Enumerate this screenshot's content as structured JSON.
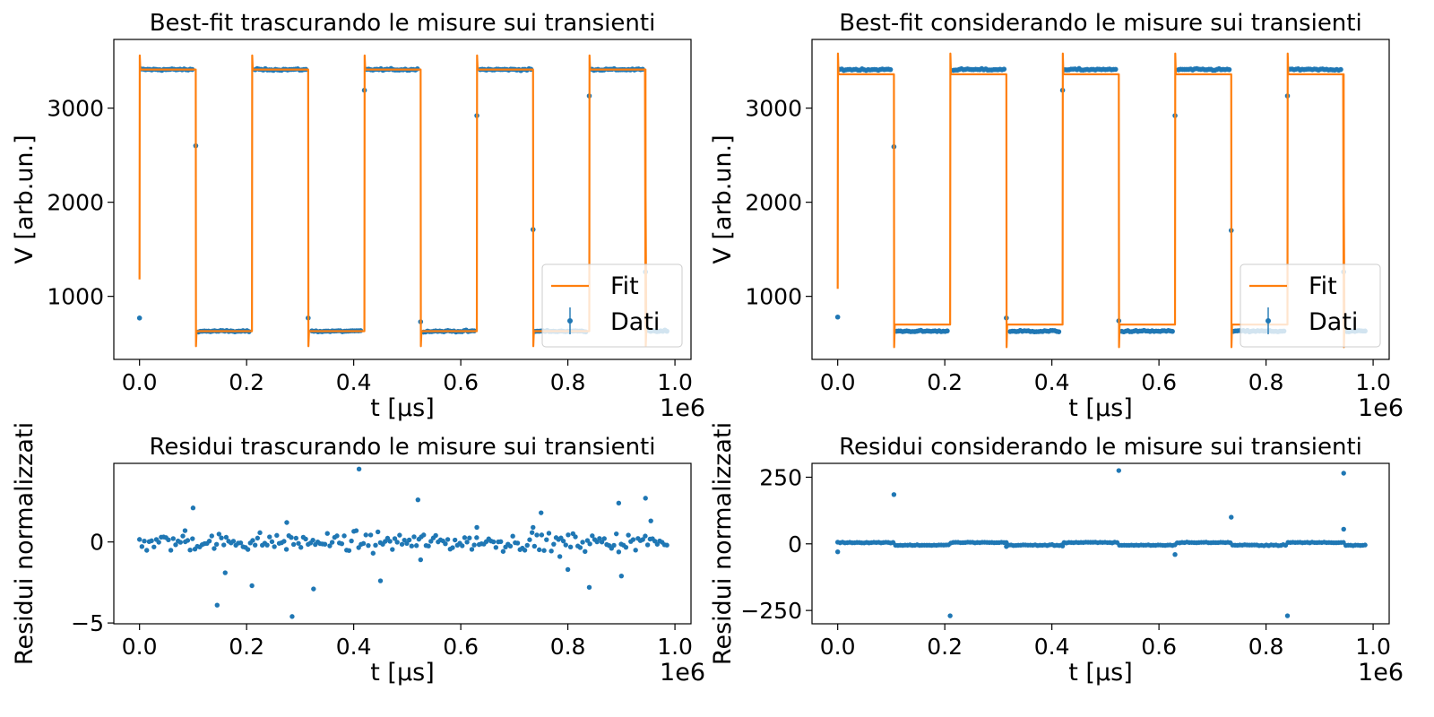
{
  "colors": {
    "data": "#1f77b4",
    "fit": "#ff7f0e",
    "axes": "#000000",
    "legend_edge": "#cccccc"
  },
  "panels": [
    {
      "title": "Best-fit trascurando le misure sui transienti",
      "xlabel": "t [μs]",
      "ylabel": "V [arb.un.]",
      "offset_text": "1e6",
      "xticks": [
        "0.0",
        "0.2",
        "0.4",
        "0.6",
        "0.8",
        "1.0"
      ],
      "yticks": [
        "1000",
        "2000",
        "3000"
      ],
      "legend": {
        "fit": "Fit",
        "data": "Dati"
      }
    },
    {
      "title": "Best-fit considerando le misure sui transienti",
      "xlabel": "t [μs]",
      "ylabel": "V [arb.un.]",
      "offset_text": "1e6",
      "xticks": [
        "0.0",
        "0.2",
        "0.4",
        "0.6",
        "0.8",
        "1.0"
      ],
      "yticks": [
        "1000",
        "2000",
        "3000"
      ],
      "legend": {
        "fit": "Fit",
        "data": "Dati"
      }
    },
    {
      "title": "Residui trascurando le misure sui transienti",
      "xlabel": "t [μs]",
      "ylabel": "Residui normalizzati",
      "offset_text": "1e6",
      "xticks": [
        "0.0",
        "0.2",
        "0.4",
        "0.6",
        "0.8",
        "1.0"
      ],
      "yticks": [
        "−5",
        "0"
      ]
    },
    {
      "title": "Residui considerando le misure sui transienti",
      "xlabel": "t [μs]",
      "ylabel": "Residui normalizzati",
      "offset_text": "1e6",
      "xticks": [
        "0.0",
        "0.2",
        "0.4",
        "0.6",
        "0.8",
        "1.0"
      ],
      "yticks": [
        "−250",
        "0",
        "250"
      ]
    }
  ],
  "chart_data": [
    {
      "type": "line",
      "title": "Best-fit trascurando le misure sui transienti",
      "xlabel": "t [μs]",
      "ylabel": "V [arb.un.]",
      "x_scale_factor": "1e6",
      "xlim": [
        -0.048,
        1.03
      ],
      "ylim": [
        330,
        3730
      ],
      "legend_position": "lower right",
      "series": [
        {
          "name": "Dati",
          "style": "points with error bars",
          "high_level": 3410,
          "low_level": 630,
          "transitions": [
            0.0,
            0.105,
            0.21,
            0.315,
            0.42,
            0.525,
            0.63,
            0.735,
            0.84,
            0.945
          ],
          "x_end": 0.985,
          "outliers": [
            [
              0.0,
              770
            ],
            [
              0.105,
              2600
            ],
            [
              0.315,
              770
            ],
            [
              0.42,
              3190
            ],
            [
              0.525,
              730
            ],
            [
              0.63,
              2920
            ],
            [
              0.735,
              1710
            ],
            [
              0.84,
              3130
            ],
            [
              0.945,
              1260
            ]
          ]
        },
        {
          "name": "Fit",
          "style": "line",
          "high_level": 3410,
          "low_level": 630,
          "start_value": 1180,
          "overshoot_high": 3560,
          "overshoot_low": 470,
          "transitions": [
            0.0,
            0.105,
            0.21,
            0.315,
            0.42,
            0.525,
            0.63,
            0.735,
            0.84,
            0.945
          ]
        }
      ]
    },
    {
      "type": "line",
      "title": "Best-fit considerando le misure sui transienti",
      "xlabel": "t [μs]",
      "ylabel": "V [arb.un.]",
      "x_scale_factor": "1e6",
      "xlim": [
        -0.048,
        1.03
      ],
      "ylim": [
        330,
        3730
      ],
      "legend_position": "lower right",
      "series": [
        {
          "name": "Dati",
          "style": "points with error bars",
          "high_level": 3410,
          "low_level": 630,
          "transitions": [
            0.0,
            0.105,
            0.21,
            0.315,
            0.42,
            0.525,
            0.63,
            0.735,
            0.84,
            0.945
          ],
          "x_end": 0.985,
          "outliers": [
            [
              0.0,
              780
            ],
            [
              0.105,
              2590
            ],
            [
              0.315,
              770
            ],
            [
              0.42,
              3190
            ],
            [
              0.525,
              740
            ],
            [
              0.63,
              2920
            ],
            [
              0.735,
              1700
            ],
            [
              0.84,
              3130
            ],
            [
              0.945,
              1260
            ]
          ]
        },
        {
          "name": "Fit",
          "style": "line",
          "high_level": 3360,
          "low_level": 700,
          "start_value": 1080,
          "overshoot_high": 3580,
          "overshoot_low": 460,
          "transitions": [
            0.0,
            0.105,
            0.21,
            0.315,
            0.42,
            0.525,
            0.63,
            0.735,
            0.84,
            0.945
          ]
        }
      ]
    },
    {
      "type": "scatter",
      "title": "Residui trascurando le misure sui transienti",
      "xlabel": "t [μs]",
      "ylabel": "Residui normalizzati",
      "x_scale_factor": "1e6",
      "xlim": [
        -0.048,
        1.03
      ],
      "ylim": [
        -5.05,
        4.85
      ],
      "series": [
        {
          "name": "Residui",
          "noise_sigma": 0.35,
          "n_points": 220,
          "x_range": [
            0.0,
            0.985
          ],
          "outliers": [
            [
              0.085,
              0.7
            ],
            [
              0.1,
              2.1
            ],
            [
              0.145,
              -3.9
            ],
            [
              0.16,
              -1.9
            ],
            [
              0.21,
              -2.7
            ],
            [
              0.275,
              1.2
            ],
            [
              0.285,
              -4.6
            ],
            [
              0.325,
              -2.9
            ],
            [
              0.41,
              4.5
            ],
            [
              0.45,
              -2.4
            ],
            [
              0.52,
              2.6
            ],
            [
              0.525,
              -1.1
            ],
            [
              0.63,
              0.9
            ],
            [
              0.735,
              0.9
            ],
            [
              0.75,
              1.8
            ],
            [
              0.785,
              -0.9
            ],
            [
              0.8,
              -1.7
            ],
            [
              0.84,
              -2.8
            ],
            [
              0.895,
              2.4
            ],
            [
              0.9,
              -2.1
            ],
            [
              0.945,
              2.7
            ],
            [
              0.955,
              1.3
            ]
          ]
        }
      ]
    },
    {
      "type": "scatter",
      "title": "Residui considerando le misure sui transienti",
      "xlabel": "t [μs]",
      "ylabel": "Residui normalizzati",
      "x_scale_factor": "1e6",
      "xlim": [
        -0.048,
        1.03
      ],
      "ylim": [
        -300,
        302
      ],
      "series": [
        {
          "name": "Residui",
          "segment_levels": [
            5,
            -5
          ],
          "transitions": [
            0.0,
            0.105,
            0.21,
            0.315,
            0.42,
            0.525,
            0.63,
            0.735,
            0.84,
            0.945
          ],
          "n_points": 220,
          "x_range": [
            0.0,
            0.985
          ],
          "outliers": [
            [
              0.0,
              -30
            ],
            [
              0.105,
              185
            ],
            [
              0.21,
              -270
            ],
            [
              0.315,
              -10
            ],
            [
              0.42,
              -8
            ],
            [
              0.525,
              275
            ],
            [
              0.63,
              -40
            ],
            [
              0.735,
              100
            ],
            [
              0.84,
              -270
            ],
            [
              0.945,
              265
            ],
            [
              0.945,
              55
            ]
          ]
        }
      ]
    }
  ]
}
